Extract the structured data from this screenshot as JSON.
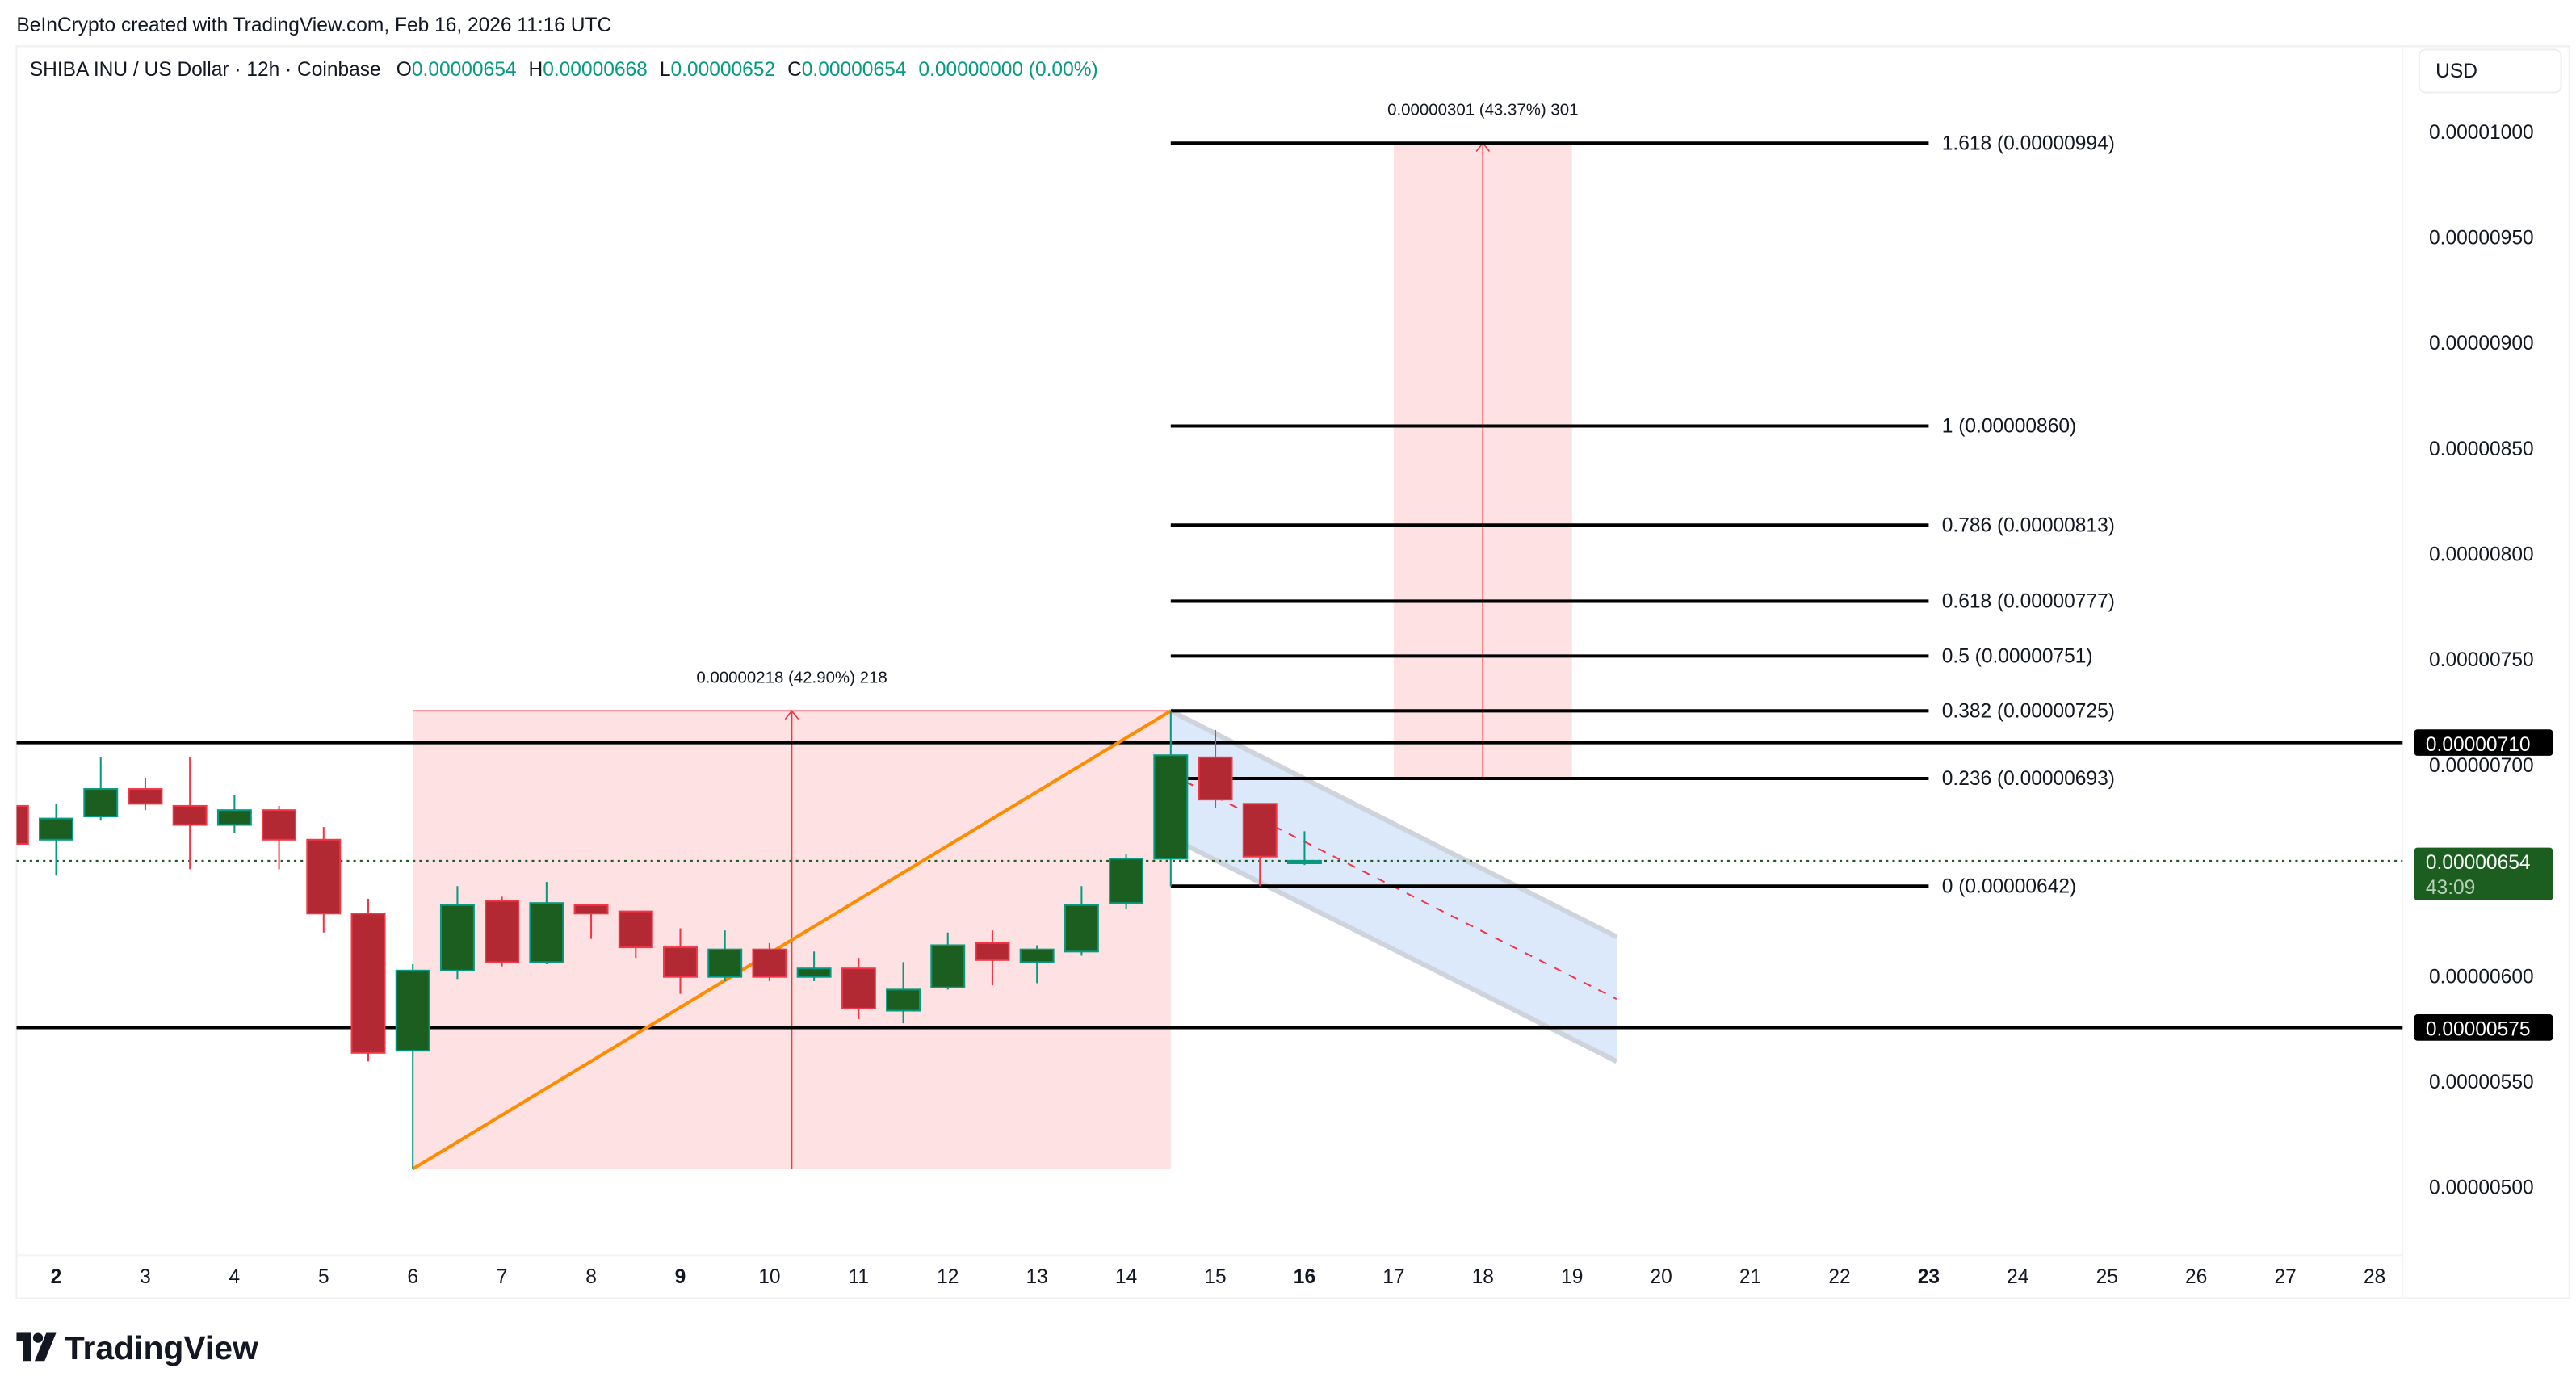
{
  "watermark": "BeInCrypto created with TradingView.com, Feb 16, 2026 11:16 UTC",
  "legend": {
    "symbol": "SHIBA INU / US Dollar · 12h · Coinbase",
    "o_label": "O",
    "o": "0.00000654",
    "h_label": "H",
    "h": "0.00000668",
    "l_label": "L",
    "l": "0.00000652",
    "c_label": "C",
    "c": "0.00000654",
    "change": "0.00000000 (0.00%)"
  },
  "currency_button": "USD",
  "logo_text": "TradingView",
  "colors": {
    "up_body": "#1b5e20",
    "up_border": "#089981",
    "down_body": "#b22833",
    "down_border": "#f23645",
    "measure_fill": "#fde1e3",
    "measure_line": "#f23645",
    "channel_fill": "#dbe9fb",
    "channel_border": "#cfd3dc",
    "trend_line": "#ff8c00",
    "level_line": "#000000",
    "last_price": "#1b5e20"
  },
  "chart_data": {
    "type": "candlestick",
    "interval": "12h",
    "ylim": [
      4.6e-06,
      1.04e-05
    ],
    "y_ticks": [
      "0.00001000",
      "0.00000950",
      "0.00000900",
      "0.00000850",
      "0.00000800",
      "0.00000750",
      "0.00000700",
      "0.00000600",
      "0.00000550",
      "0.00000500"
    ],
    "x_ticks": [
      {
        "label": "2",
        "bold": true
      },
      {
        "label": "3"
      },
      {
        "label": "4"
      },
      {
        "label": "5"
      },
      {
        "label": "6"
      },
      {
        "label": "7"
      },
      {
        "label": "8"
      },
      {
        "label": "9",
        "bold": true
      },
      {
        "label": "10"
      },
      {
        "label": "11"
      },
      {
        "label": "12"
      },
      {
        "label": "13"
      },
      {
        "label": "14"
      },
      {
        "label": "15"
      },
      {
        "label": "16",
        "bold": true
      },
      {
        "label": "17"
      },
      {
        "label": "18"
      },
      {
        "label": "19"
      },
      {
        "label": "20"
      },
      {
        "label": "21"
      },
      {
        "label": "22"
      },
      {
        "label": "23",
        "bold": true
      },
      {
        "label": "24"
      },
      {
        "label": "25"
      },
      {
        "label": "26"
      },
      {
        "label": "27"
      },
      {
        "label": "28"
      }
    ],
    "candles": [
      {
        "t": "02-01 12:00",
        "o": 6.8e-06,
        "h": 6.81e-06,
        "l": 6.61e-06,
        "c": 6.62e-06
      },
      {
        "t": "02-02 00:00",
        "o": 6.64e-06,
        "h": 6.81e-06,
        "l": 6.47e-06,
        "c": 6.74e-06
      },
      {
        "t": "02-02 12:00",
        "o": 6.75e-06,
        "h": 7.03e-06,
        "l": 6.73e-06,
        "c": 6.88e-06
      },
      {
        "t": "02-03 00:00",
        "o": 6.88e-06,
        "h": 6.93e-06,
        "l": 6.78e-06,
        "c": 6.81e-06
      },
      {
        "t": "02-03 12:00",
        "o": 6.8e-06,
        "h": 7.03e-06,
        "l": 6.5e-06,
        "c": 6.71e-06
      },
      {
        "t": "02-04 00:00",
        "o": 6.71e-06,
        "h": 6.85e-06,
        "l": 6.67e-06,
        "c": 6.78e-06
      },
      {
        "t": "02-04 12:00",
        "o": 6.78e-06,
        "h": 6.8e-06,
        "l": 6.5e-06,
        "c": 6.64e-06
      },
      {
        "t": "02-05 00:00",
        "o": 6.64e-06,
        "h": 6.7e-06,
        "l": 6.2e-06,
        "c": 6.29e-06
      },
      {
        "t": "02-05 12:00",
        "o": 6.29e-06,
        "h": 6.36e-06,
        "l": 5.59e-06,
        "c": 5.63e-06
      },
      {
        "t": "02-06 00:00",
        "o": 5.64e-06,
        "h": 6.05e-06,
        "l": 5.08e-06,
        "c": 6.02e-06
      },
      {
        "t": "02-06 12:00",
        "o": 6.02e-06,
        "h": 6.42e-06,
        "l": 5.98e-06,
        "c": 6.33e-06
      },
      {
        "t": "02-07 00:00",
        "o": 6.35e-06,
        "h": 6.37e-06,
        "l": 6.04e-06,
        "c": 6.06e-06
      },
      {
        "t": "02-07 12:00",
        "o": 6.06e-06,
        "h": 6.44e-06,
        "l": 6.05e-06,
        "c": 6.34e-06
      },
      {
        "t": "02-08 00:00",
        "o": 6.33e-06,
        "h": 6.33e-06,
        "l": 6.17e-06,
        "c": 6.29e-06
      },
      {
        "t": "02-08 12:00",
        "o": 6.3e-06,
        "h": 6.3e-06,
        "l": 6.08e-06,
        "c": 6.13e-06
      },
      {
        "t": "02-09 00:00",
        "o": 6.13e-06,
        "h": 6.22e-06,
        "l": 5.91e-06,
        "c": 5.99e-06
      },
      {
        "t": "02-09 12:00",
        "o": 5.99e-06,
        "h": 6.21e-06,
        "l": 5.97e-06,
        "c": 6.12e-06
      },
      {
        "t": "02-10 00:00",
        "o": 6.12e-06,
        "h": 6.15e-06,
        "l": 5.97e-06,
        "c": 5.99e-06
      },
      {
        "t": "02-10 12:00",
        "o": 5.99e-06,
        "h": 6.11e-06,
        "l": 5.97e-06,
        "c": 6.03e-06
      },
      {
        "t": "02-11 00:00",
        "o": 6.03e-06,
        "h": 6.08e-06,
        "l": 5.79e-06,
        "c": 5.84e-06
      },
      {
        "t": "02-11 12:00",
        "o": 5.83e-06,
        "h": 6.06e-06,
        "l": 5.77e-06,
        "c": 5.93e-06
      },
      {
        "t": "02-12 00:00",
        "o": 5.94e-06,
        "h": 6.2e-06,
        "l": 5.93e-06,
        "c": 6.14e-06
      },
      {
        "t": "02-12 12:00",
        "o": 6.15e-06,
        "h": 6.21e-06,
        "l": 5.95e-06,
        "c": 6.07e-06
      },
      {
        "t": "02-13 00:00",
        "o": 6.06e-06,
        "h": 6.14e-06,
        "l": 5.96e-06,
        "c": 6.12e-06
      },
      {
        "t": "02-13 12:00",
        "o": 6.11e-06,
        "h": 6.42e-06,
        "l": 6.09e-06,
        "c": 6.33e-06
      },
      {
        "t": "02-14 00:00",
        "o": 6.34e-06,
        "h": 6.57e-06,
        "l": 6.31e-06,
        "c": 6.55e-06
      },
      {
        "t": "02-14 12:00",
        "o": 6.55e-06,
        "h": 7.25e-06,
        "l": 6.42e-06,
        "c": 7.04e-06
      },
      {
        "t": "02-15 00:00",
        "o": 7.03e-06,
        "h": 7.16e-06,
        "l": 6.79e-06,
        "c": 6.83e-06
      },
      {
        "t": "02-15 12:00",
        "o": 6.81e-06,
        "h": 6.81e-06,
        "l": 6.42e-06,
        "c": 6.56e-06
      },
      {
        "t": "02-16 00:00",
        "o": 6.54e-06,
        "h": 6.68e-06,
        "l": 6.52e-06,
        "c": 6.54e-06
      }
    ],
    "horizontal_levels": [
      {
        "price": 7.1e-06,
        "label": "0.00000710"
      },
      {
        "price": 5.75e-06,
        "label": "0.00000575"
      }
    ],
    "last_price": {
      "price": 6.54e-06,
      "label": "0.00000654",
      "countdown": "43:09"
    },
    "fib_levels": {
      "from": "02-14 12:00",
      "to": "02-23 00:00",
      "levels": [
        {
          "price": 9.94e-06,
          "label": "1.618 (0.00000994)"
        },
        {
          "price": 8.6e-06,
          "label": "1 (0.00000860)"
        },
        {
          "price": 8.13e-06,
          "label": "0.786 (0.00000813)"
        },
        {
          "price": 7.77e-06,
          "label": "0.618 (0.00000777)"
        },
        {
          "price": 7.51e-06,
          "label": "0.5 (0.00000751)"
        },
        {
          "price": 7.25e-06,
          "label": "0.382 (0.00000725)"
        },
        {
          "price": 6.93e-06,
          "label": "0.236 (0.00000693)"
        },
        {
          "price": 6.42e-06,
          "label": "0 (0.00000642)"
        }
      ]
    },
    "measures": [
      {
        "from": "02-06 00:00",
        "to": "02-14 12:00",
        "low": 5.08e-06,
        "high": 7.25e-06,
        "label": "0.00000218 (42.90%) 218"
      },
      {
        "from": "02-17 00:00",
        "to": "02-19 00:00",
        "low": 6.93e-06,
        "high": 9.94e-06,
        "label": "0.00000301 (43.37%) 301"
      }
    ],
    "trend_line": {
      "from": {
        "t": "02-06 00:00",
        "p": 5.08e-06
      },
      "to": {
        "t": "02-14 12:00",
        "p": 7.25e-06
      }
    },
    "channel": {
      "from": "02-14 12:00",
      "to": "02-19 12:00",
      "upper": [
        7.25e-06,
        6.18e-06
      ],
      "lower": [
        6.65e-06,
        5.59e-06
      ]
    }
  }
}
